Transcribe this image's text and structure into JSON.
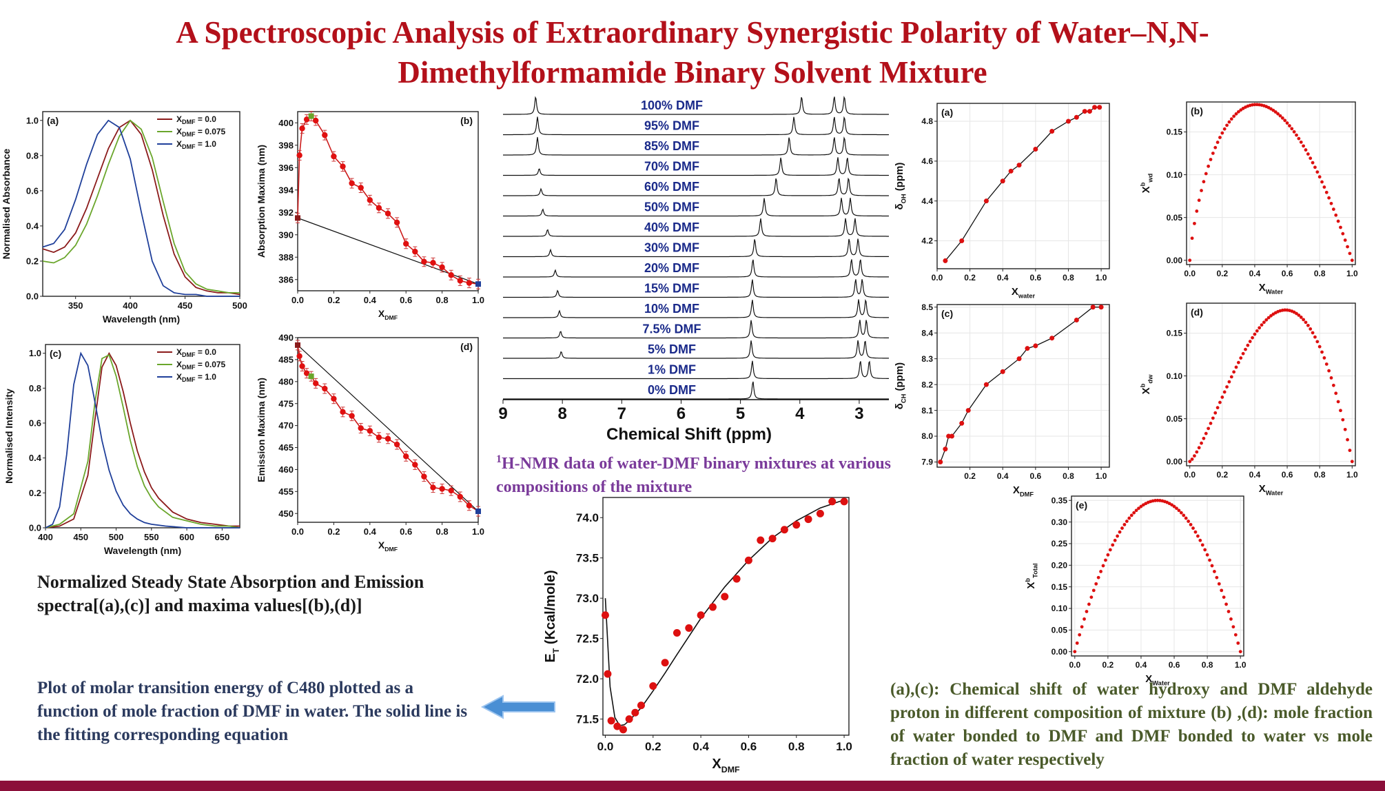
{
  "title": "A Spectroscopic Analysis of Extraordinary Synergistic Polarity of Water–N,N-Dimethylformamide Binary Solvent Mixture",
  "captions": {
    "spectra": "Normalized Steady State Absorption and Emission spectra[(a),(c)] and maxima values[(b),(d)]",
    "et_plot": "Plot of molar transition energy of C480 plotted as a function of mole fraction of DMF in water. The solid line is the fitting corresponding equation",
    "nmr_sup": "1",
    "nmr": "H-NMR data of water-DMF binary mixtures at various compositions of the mixture",
    "shift": "(a),(c): Chemical shift of water hydroxy and DMF aldehyde proton in different composition of mixture (b) ,(d): mole fraction of water bonded to DMF and DMF bonded to water vs mole fraction of water respectively"
  },
  "colors": {
    "title": "#b3101a",
    "red_series": "#8b1a1a",
    "green_series": "#6aa62b",
    "blue_series": "#1f3f9a",
    "marker_red": "#e01010",
    "nmr_label": "#1a2a8a",
    "footer": "#8b0f3a"
  },
  "chart_data": [
    {
      "id": "abs-spectra",
      "panel": "(a)",
      "type": "line",
      "xlabel": "Wavelength (nm)",
      "ylabel": "Normalised Absorbance",
      "xlim": [
        320,
        500
      ],
      "ylim": [
        0,
        1.05
      ],
      "xticks": [
        "350",
        "400",
        "450",
        "500"
      ],
      "yticks": [
        "0.0",
        "0.2",
        "0.4",
        "0.6",
        "0.8",
        "1.0"
      ],
      "legend": [
        {
          "label": "X",
          "sub": "DMF",
          "value": " = 0.0"
        },
        {
          "label": "X",
          "sub": "DMF",
          "value": " = 0.075"
        },
        {
          "label": "X",
          "sub": "DMF",
          "value": " = 1.0"
        }
      ],
      "legend_position": "top-right",
      "series": [
        {
          "name": "XDMF = 0.0",
          "color": "#8b1a1a",
          "x": [
            320,
            330,
            340,
            350,
            360,
            370,
            380,
            390,
            400,
            410,
            420,
            430,
            440,
            450,
            460,
            470,
            480,
            490,
            500
          ],
          "y": [
            0.27,
            0.25,
            0.28,
            0.36,
            0.5,
            0.67,
            0.84,
            0.96,
            1.0,
            0.92,
            0.72,
            0.46,
            0.24,
            0.11,
            0.05,
            0.03,
            0.02,
            0.02,
            0.01
          ]
        },
        {
          "name": "XDMF = 0.075",
          "color": "#6aa62b",
          "x": [
            320,
            330,
            340,
            350,
            360,
            370,
            380,
            390,
            400,
            410,
            420,
            430,
            440,
            450,
            460,
            470,
            480,
            490,
            500
          ],
          "y": [
            0.2,
            0.19,
            0.22,
            0.29,
            0.41,
            0.57,
            0.75,
            0.91,
            1.0,
            0.95,
            0.79,
            0.54,
            0.3,
            0.14,
            0.07,
            0.04,
            0.03,
            0.02,
            0.02
          ]
        },
        {
          "name": "XDMF = 1.0",
          "color": "#1f3f9a",
          "x": [
            320,
            330,
            340,
            350,
            360,
            370,
            380,
            390,
            400,
            410,
            420,
            430,
            440,
            450,
            460,
            470,
            480,
            490,
            500
          ],
          "y": [
            0.28,
            0.3,
            0.38,
            0.55,
            0.75,
            0.92,
            1.0,
            0.96,
            0.78,
            0.48,
            0.2,
            0.06,
            0.02,
            0.01,
            0.01,
            0.0,
            0.0,
            0.0,
            0.0
          ]
        }
      ]
    },
    {
      "id": "abs-maxima",
      "panel": "(b)",
      "type": "scatter",
      "xlabel": "X",
      "xlabel_sub": "DMF",
      "ylabel": "Absorption Maxima (nm)",
      "xlim": [
        0,
        1.0
      ],
      "ylim": [
        385,
        401
      ],
      "xticks": [
        "0.0",
        "0.2",
        "0.4",
        "0.6",
        "0.8",
        "1.0"
      ],
      "yticks": [
        "386",
        "388",
        "390",
        "392",
        "394",
        "396",
        "398",
        "400"
      ],
      "x": [
        0.0,
        0.01,
        0.025,
        0.05,
        0.075,
        0.1,
        0.15,
        0.2,
        0.25,
        0.3,
        0.35,
        0.4,
        0.45,
        0.5,
        0.55,
        0.6,
        0.65,
        0.7,
        0.75,
        0.8,
        0.85,
        0.9,
        0.95,
        1.0
      ],
      "y": [
        391.5,
        397.1,
        399.5,
        400.3,
        400.6,
        400.2,
        398.9,
        397.0,
        396.1,
        394.6,
        394.2,
        393.1,
        392.4,
        391.9,
        391.1,
        389.2,
        388.5,
        387.6,
        387.5,
        387.1,
        386.4,
        385.9,
        385.7,
        385.6
      ],
      "reference_line": {
        "x": [
          0.0,
          1.0
        ],
        "y": [
          391.5,
          385.6
        ]
      }
    },
    {
      "id": "em-spectra",
      "panel": "(c)",
      "type": "line",
      "xlabel": "Wavelength (nm)",
      "ylabel": "Normalised Intensity",
      "xlim": [
        400,
        675
      ],
      "ylim": [
        0,
        1.05
      ],
      "xticks": [
        "400",
        "450",
        "500",
        "550",
        "600",
        "650"
      ],
      "yticks": [
        "0.0",
        "0.2",
        "0.4",
        "0.6",
        "0.8",
        "1.0"
      ],
      "legend": [
        {
          "label": "X",
          "sub": "DMF",
          "value": " = 0.0"
        },
        {
          "label": "X",
          "sub": "DMF",
          "value": " = 0.075"
        },
        {
          "label": "X",
          "sub": "DMF",
          "value": " = 1.0"
        }
      ],
      "legend_position": "top-right",
      "series": [
        {
          "name": "XDMF = 0.0",
          "color": "#8b1a1a",
          "x": [
            400,
            420,
            440,
            460,
            470,
            480,
            490,
            500,
            510,
            520,
            530,
            540,
            550,
            560,
            580,
            600,
            620,
            640,
            660,
            675
          ],
          "y": [
            0.0,
            0.01,
            0.05,
            0.3,
            0.62,
            0.92,
            1.0,
            0.93,
            0.78,
            0.6,
            0.44,
            0.32,
            0.23,
            0.17,
            0.09,
            0.05,
            0.03,
            0.02,
            0.01,
            0.01
          ]
        },
        {
          "name": "XDMF = 0.075",
          "color": "#6aa62b",
          "x": [
            400,
            420,
            440,
            460,
            470,
            480,
            490,
            500,
            510,
            520,
            530,
            540,
            550,
            560,
            580,
            600,
            620,
            640,
            660,
            675
          ],
          "y": [
            0.0,
            0.02,
            0.08,
            0.38,
            0.72,
            0.97,
            0.99,
            0.87,
            0.69,
            0.5,
            0.35,
            0.24,
            0.17,
            0.12,
            0.06,
            0.04,
            0.02,
            0.01,
            0.01,
            0.0
          ]
        },
        {
          "name": "XDMF = 1.0",
          "color": "#1f3f9a",
          "x": [
            400,
            410,
            420,
            430,
            440,
            450,
            460,
            470,
            480,
            490,
            500,
            510,
            520,
            530,
            540,
            550,
            570,
            600,
            640,
            675
          ],
          "y": [
            0.0,
            0.02,
            0.12,
            0.42,
            0.82,
            1.0,
            0.93,
            0.72,
            0.5,
            0.33,
            0.21,
            0.13,
            0.08,
            0.05,
            0.03,
            0.02,
            0.01,
            0.0,
            0.0,
            0.0
          ]
        }
      ]
    },
    {
      "id": "em-maxima",
      "panel": "(d)",
      "type": "scatter",
      "xlabel": "X",
      "xlabel_sub": "DMF",
      "ylabel": "Emission Maxima (nm)",
      "xlim": [
        0,
        1.0
      ],
      "ylim": [
        448,
        490
      ],
      "xticks": [
        "0.0",
        "0.2",
        "0.4",
        "0.6",
        "0.8",
        "1.0"
      ],
      "yticks": [
        "450",
        "455",
        "460",
        "465",
        "470",
        "475",
        "480",
        "485",
        "490"
      ],
      "x": [
        0.0,
        0.01,
        0.025,
        0.05,
        0.075,
        0.1,
        0.15,
        0.2,
        0.25,
        0.3,
        0.35,
        0.4,
        0.45,
        0.5,
        0.55,
        0.6,
        0.65,
        0.7,
        0.75,
        0.8,
        0.85,
        0.9,
        0.95,
        1.0
      ],
      "y": [
        488.3,
        485.8,
        483.5,
        481.9,
        481.2,
        479.6,
        478.4,
        476.1,
        473.1,
        472.2,
        469.4,
        468.8,
        467.3,
        467.0,
        465.7,
        463.0,
        461.1,
        458.4,
        455.9,
        455.6,
        455.2,
        453.8,
        451.8,
        450.5
      ],
      "reference_line": {
        "x": [
          0.0,
          1.0
        ],
        "y": [
          488.3,
          450.5
        ]
      }
    },
    {
      "id": "nmr-stack",
      "type": "line",
      "xlabel": "Chemical Shift (ppm)",
      "xlim": [
        9,
        2.5
      ],
      "xticks": [
        "9",
        "8",
        "7",
        "6",
        "5",
        "4",
        "3"
      ],
      "traces": [
        {
          "label": "100% DMF",
          "peaks": [
            8.45,
            3.97,
            3.42,
            3.25
          ]
        },
        {
          "label": "95% DMF",
          "peaks": [
            8.42,
            4.1,
            3.42,
            3.25
          ]
        },
        {
          "label": "85% DMF",
          "peaks": [
            8.42,
            4.18,
            3.42,
            3.25
          ]
        },
        {
          "label": "70% DMF",
          "peaks": [
            8.39,
            4.32,
            3.36,
            3.2
          ]
        },
        {
          "label": "60% DMF",
          "peaks": [
            8.36,
            4.4,
            3.34,
            3.18
          ]
        },
        {
          "label": "50% DMF",
          "peaks": [
            8.33,
            4.6,
            3.3,
            3.15
          ]
        },
        {
          "label": "40% DMF",
          "peaks": [
            8.25,
            4.66,
            3.23,
            3.07
          ]
        },
        {
          "label": "30% DMF",
          "peaks": [
            8.2,
            4.76,
            3.17,
            3.02
          ]
        },
        {
          "label": "20% DMF",
          "peaks": [
            8.12,
            4.79,
            3.13,
            2.98
          ]
        },
        {
          "label": "15% DMF",
          "peaks": [
            8.08,
            4.8,
            3.06,
            2.95
          ]
        },
        {
          "label": "10% DMF",
          "peaks": [
            8.05,
            4.8,
            3.01,
            2.89
          ]
        },
        {
          "label": "7.5% DMF",
          "peaks": [
            8.03,
            4.82,
            2.99,
            2.88
          ]
        },
        {
          "label": "5% DMF",
          "peaks": [
            8.02,
            4.82,
            3.02,
            2.9
          ]
        },
        {
          "label": "1% DMF",
          "peaks": [
            4.8,
            2.98,
            2.83
          ]
        },
        {
          "label": "0% DMF",
          "peaks": [
            4.79
          ]
        }
      ]
    },
    {
      "id": "et-plot",
      "type": "scatter",
      "xlabel": "X",
      "xlabel_sub": "DMF",
      "ylabel": "E",
      "ylabel_sub": "T",
      "ylabel_rest": " (Kcal/mole)",
      "xlim": [
        -0.01,
        1.02
      ],
      "ylim": [
        71.3,
        74.25
      ],
      "xticks": [
        "0.0",
        "0.2",
        "0.4",
        "0.6",
        "0.8",
        "1.0"
      ],
      "yticks": [
        "71.5",
        "72.0",
        "72.5",
        "73.0",
        "73.5",
        "74.0"
      ],
      "x": [
        0.0,
        0.01,
        0.025,
        0.05,
        0.075,
        0.1,
        0.125,
        0.15,
        0.2,
        0.25,
        0.3,
        0.35,
        0.4,
        0.45,
        0.5,
        0.55,
        0.6,
        0.65,
        0.7,
        0.75,
        0.8,
        0.85,
        0.9,
        0.95,
        1.0
      ],
      "y": [
        72.79,
        72.06,
        71.48,
        71.41,
        71.37,
        71.5,
        71.58,
        71.67,
        71.91,
        72.2,
        72.57,
        72.63,
        72.79,
        72.89,
        73.02,
        73.24,
        73.47,
        73.72,
        73.74,
        73.85,
        73.91,
        73.98,
        74.05,
        74.2,
        74.2
      ],
      "fit": {
        "x": [
          0.0,
          0.02,
          0.04,
          0.06,
          0.08,
          0.1,
          0.15,
          0.2,
          0.25,
          0.3,
          0.4,
          0.5,
          0.6,
          0.7,
          0.8,
          0.9,
          1.0
        ],
        "y": [
          73.0,
          71.9,
          71.52,
          71.42,
          71.43,
          71.48,
          71.64,
          71.85,
          72.07,
          72.3,
          72.75,
          73.14,
          73.47,
          73.75,
          73.96,
          74.12,
          74.22
        ]
      }
    },
    {
      "id": "doh-shift",
      "panel": "(a)",
      "type": "scatter",
      "xlabel": "X",
      "xlabel_sub": "water",
      "ylabel": "δ",
      "ylabel_sub": "OH",
      "ylabel_rest": " (ppm)",
      "xlim": [
        0,
        1.05
      ],
      "ylim": [
        4.06,
        4.89
      ],
      "xticks": [
        "0.0",
        "0.2",
        "0.4",
        "0.6",
        "0.8",
        "1.0"
      ],
      "yticks": [
        "4.2",
        "4.4",
        "4.6",
        "4.8"
      ],
      "x": [
        0.05,
        0.15,
        0.3,
        0.4,
        0.45,
        0.5,
        0.6,
        0.7,
        0.8,
        0.85,
        0.9,
        0.93,
        0.96,
        0.99
      ],
      "y": [
        4.1,
        4.2,
        4.4,
        4.5,
        4.55,
        4.58,
        4.66,
        4.75,
        4.8,
        4.82,
        4.85,
        4.85,
        4.87,
        4.87
      ]
    },
    {
      "id": "dch-shift",
      "panel": "(c)",
      "type": "scatter",
      "xlabel": "X",
      "xlabel_sub": "DMF",
      "ylabel": "δ",
      "ylabel_sub": "CH",
      "ylabel_rest": " (ppm)",
      "xlim": [
        0,
        1.05
      ],
      "ylim": [
        7.88,
        8.51
      ],
      "xticks": [
        "0.2",
        "0.4",
        "0.6",
        "0.8",
        "1.0"
      ],
      "yticks": [
        "7.9",
        "8.0",
        "8.1",
        "8.2",
        "8.3",
        "8.4",
        "8.5"
      ],
      "x": [
        0.02,
        0.05,
        0.07,
        0.09,
        0.15,
        0.19,
        0.3,
        0.4,
        0.5,
        0.55,
        0.6,
        0.7,
        0.85,
        0.95,
        1.0
      ],
      "y": [
        7.9,
        7.95,
        8.0,
        8.0,
        8.05,
        8.1,
        8.2,
        8.25,
        8.3,
        8.34,
        8.35,
        8.38,
        8.45,
        8.5,
        8.5
      ]
    },
    {
      "id": "xb-wd",
      "panel": "(b)",
      "type": "scatter",
      "xlabel": "X",
      "xlabel_sub": "Water",
      "ylabel": "X",
      "ylabel_sup": "b",
      "ylabel_sub": "wd",
      "xlim": [
        -0.02,
        1.02
      ],
      "ylim": [
        -0.005,
        0.185
      ],
      "xticks": [
        "0.0",
        "0.2",
        "0.4",
        "0.6",
        "0.8",
        "1.0"
      ],
      "yticks": [
        "0.00",
        "0.05",
        "0.10",
        "0.15"
      ],
      "curve": "parabolic",
      "peak_x": 0.41,
      "peak_y": 0.182
    },
    {
      "id": "xb-dw",
      "panel": "(d)",
      "type": "scatter",
      "xlabel": "X",
      "xlabel_sub": "Water",
      "ylabel": "X",
      "ylabel_sup": "b",
      "ylabel_sub": "dw",
      "xlim": [
        -0.02,
        1.02
      ],
      "ylim": [
        -0.005,
        0.185
      ],
      "xticks": [
        "0.0",
        "0.2",
        "0.4",
        "0.6",
        "0.8",
        "1.0"
      ],
      "yticks": [
        "0.00",
        "0.05",
        "0.10",
        "0.15"
      ],
      "curve": "parabolic",
      "peak_x": 0.59,
      "peak_y": 0.177
    },
    {
      "id": "xb-total",
      "panel": "(e)",
      "type": "scatter",
      "xlabel": "X",
      "xlabel_sub": "Water",
      "ylabel": "X",
      "ylabel_sup": "b",
      "ylabel_sub": "Total",
      "xlim": [
        -0.02,
        1.02
      ],
      "ylim": [
        -0.01,
        0.36
      ],
      "xticks": [
        "0.0",
        "0.2",
        "0.4",
        "0.6",
        "0.8",
        "1.0"
      ],
      "yticks": [
        "0.00",
        "0.05",
        "0.10",
        "0.15",
        "0.20",
        "0.25",
        "0.30",
        "0.35"
      ],
      "curve": "parabolic",
      "peak_x": 0.5,
      "peak_y": 0.35
    }
  ]
}
